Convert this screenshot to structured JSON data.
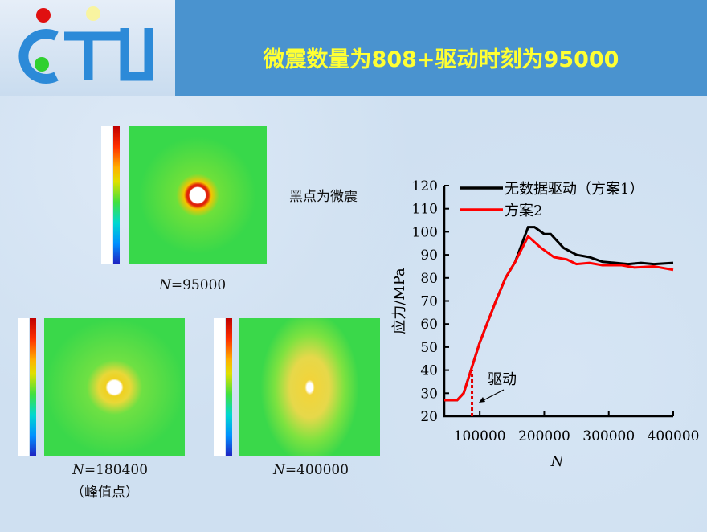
{
  "header": {
    "title": "微震数量为808+驱动时刻为95000",
    "logo_text": "CTU"
  },
  "panels": [
    {
      "caption": "N=95000",
      "caption_var": "N",
      "caption_val": "=95000",
      "note": "黑点为微震"
    },
    {
      "caption_var": "N",
      "caption_val": "=180400",
      "sub": "（峰值点）"
    },
    {
      "caption_var": "N",
      "caption_val": "=400000"
    }
  ],
  "chart_data": {
    "type": "line",
    "xlabel": "N",
    "ylabel": "应力/MPa",
    "xlim": [
      45000,
      400000
    ],
    "ylim": [
      20,
      120
    ],
    "xticks": [
      100000,
      200000,
      300000,
      400000
    ],
    "yticks": [
      20,
      30,
      40,
      50,
      60,
      70,
      80,
      90,
      100,
      110,
      120
    ],
    "legend_position": "top",
    "series": [
      {
        "name": "无数据驱动（方案1）",
        "color": "#000000",
        "x": [
          45000,
          65000,
          75000,
          100000,
          125000,
          140000,
          155000,
          175000,
          185000,
          200000,
          210000,
          230000,
          250000,
          270000,
          290000,
          330000,
          350000,
          370000,
          400000
        ],
        "y": [
          27,
          27,
          30,
          52,
          70,
          80,
          87,
          102,
          102,
          99,
          99,
          93,
          90,
          89,
          87,
          86,
          86.5,
          86,
          86.5
        ]
      },
      {
        "name": "方案2",
        "color": "#ff0000",
        "x": [
          45000,
          65000,
          75000,
          100000,
          125000,
          140000,
          155000,
          175000,
          195000,
          215000,
          235000,
          250000,
          270000,
          290000,
          320000,
          340000,
          370000,
          400000
        ],
        "y": [
          27,
          27,
          30,
          52,
          70,
          80,
          87,
          98,
          93,
          89,
          88,
          86,
          86.5,
          85.5,
          85.5,
          84.5,
          85,
          83.5
        ]
      }
    ],
    "annotation": {
      "text": "驱动",
      "x": 88000,
      "y_from": 20,
      "y_to": 40
    }
  }
}
